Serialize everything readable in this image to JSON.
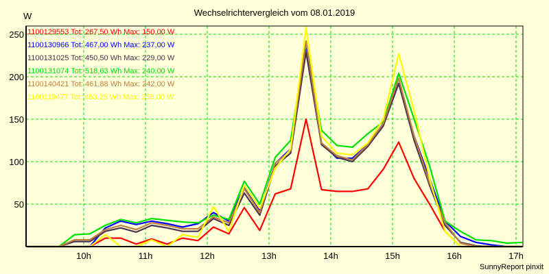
{
  "chart_data": {
    "type": "line",
    "title": "Wechselrichtervergleich vom 08.01.2019",
    "ylabel": "W",
    "xlabel": "",
    "credit": "SunnyReport pinxit",
    "ylim": [
      0,
      260
    ],
    "xlim": [
      9.07,
      17.11
    ],
    "yticks": [
      50,
      100,
      150,
      200,
      250
    ],
    "ytick_labels": [
      "50",
      "100",
      "150",
      "200",
      "250"
    ],
    "xticks": [
      10,
      11,
      12,
      13,
      14,
      15,
      16,
      17
    ],
    "xtick_labels": [
      "10h",
      "11h",
      "12h",
      "13h",
      "14h",
      "15h",
      "16h",
      "17h"
    ],
    "grid": true,
    "legend_position": "top-left",
    "x": [
      9.1,
      9.35,
      9.6,
      9.85,
      10.1,
      10.35,
      10.6,
      10.85,
      11.1,
      11.35,
      11.6,
      11.85,
      12.1,
      12.35,
      12.6,
      12.85,
      13.1,
      13.35,
      13.6,
      13.85,
      14.1,
      14.35,
      14.6,
      14.85,
      15.1,
      15.35,
      15.6,
      15.85,
      16.1,
      16.35,
      16.6,
      16.85,
      17.1
    ],
    "series": [
      {
        "name": "1100129553",
        "legend": "1100129553 Tot: 267,50 Wh Max: 150,00 W",
        "color": "#FF0000",
        "values": [
          0,
          0,
          0,
          0,
          0,
          10,
          10,
          3,
          9,
          3,
          10,
          7,
          23,
          15,
          46,
          19,
          62,
          68,
          150,
          67,
          65,
          65,
          68,
          91,
          123,
          80,
          50,
          18,
          0,
          0,
          0,
          0,
          0
        ]
      },
      {
        "name": "1100130966",
        "legend": "1100130966 Tot: 467,00 Wh Max: 237,00 W",
        "color": "#0000FF",
        "values": [
          0,
          0,
          0,
          0,
          0,
          22,
          30,
          26,
          30,
          27,
          23,
          27,
          40,
          30,
          70,
          42,
          98,
          115,
          237,
          122,
          104,
          104,
          120,
          145,
          192,
          130,
          80,
          30,
          12,
          5,
          2,
          0,
          0
        ]
      },
      {
        "name": "1100131025",
        "legend": "1100131025 Tot: 450,50 Wh Max: 229,00 W",
        "color": "#4B3452",
        "values": [
          0,
          0,
          0,
          6,
          6,
          18,
          22,
          17,
          25,
          22,
          18,
          18,
          33,
          25,
          63,
          37,
          95,
          110,
          229,
          120,
          105,
          100,
          118,
          142,
          192,
          125,
          72,
          25,
          5,
          1,
          0,
          0,
          0
        ]
      },
      {
        "name": "1100131074",
        "legend": "1100131074 Tot: 518,63 Wh Max: 240,00 W",
        "color": "#00E000",
        "values": [
          0,
          0,
          0,
          14,
          15,
          25,
          32,
          28,
          33,
          31,
          29,
          28,
          37,
          32,
          77,
          50,
          105,
          125,
          240,
          137,
          119,
          117,
          133,
          147,
          204,
          150,
          95,
          30,
          18,
          8,
          7,
          4,
          5
        ]
      },
      {
        "name": "1100140421",
        "legend": "1100140421 Tot: 461,88 Wh Max: 242,00 W",
        "color": "#C08040",
        "values": [
          0,
          0,
          0,
          8,
          8,
          20,
          25,
          20,
          28,
          25,
          21,
          21,
          35,
          28,
          68,
          40,
          98,
          113,
          242,
          122,
          107,
          102,
          120,
          145,
          198,
          130,
          75,
          28,
          4,
          0,
          0,
          0,
          0
        ]
      },
      {
        "name": "1100119477",
        "legend": "1100119477 Tot: 453,25 Wh Max: 258,00 W",
        "color": "#FFFF00",
        "values": [
          0,
          0,
          0,
          0,
          0,
          14,
          0,
          0,
          8,
          0,
          14,
          11,
          47,
          18,
          72,
          45,
          92,
          115,
          258,
          130,
          110,
          108,
          122,
          150,
          227,
          160,
          80,
          18,
          0,
          0,
          0,
          0,
          0
        ]
      }
    ]
  }
}
